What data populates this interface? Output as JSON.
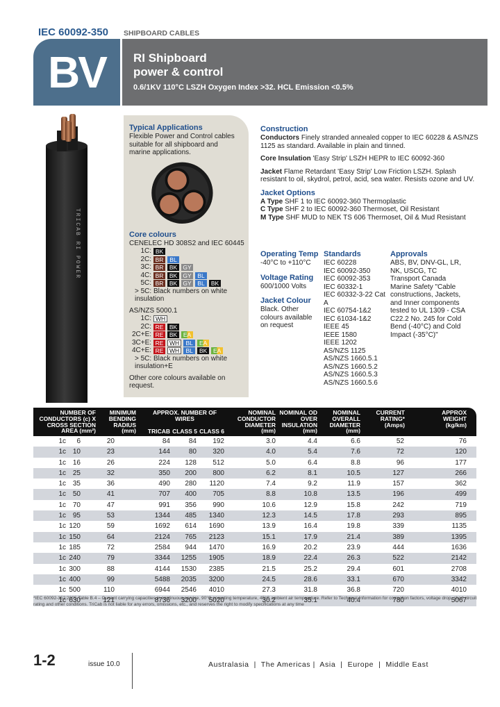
{
  "header": {
    "code": "IEC 60092-350",
    "category": "SHIPBOARD CABLES"
  },
  "banner": {
    "badge": "BV",
    "title_line1": "RI Shipboard",
    "title_line2": "power & control",
    "subtitle": "0.6/1KV  110°C LSZH Oxygen Index >32. HCL Emission <0.5%"
  },
  "cable_print": "TRICAB RI POWER",
  "typical": {
    "heading": "Typical  Applications",
    "text": "Flexible Power and Control cables suitable for all shipboard and marine applications."
  },
  "core_colours": {
    "heading": "Core colours",
    "cenelec_title": "CENELEC HD 308S2 and IEC 60445",
    "cenelec": [
      {
        "label": "1C:",
        "codes": [
          "BK"
        ]
      },
      {
        "label": "2C:",
        "codes": [
          "BR",
          "BL"
        ]
      },
      {
        "label": "3C:",
        "codes": [
          "BR",
          "BK",
          "GY"
        ]
      },
      {
        "label": "4C:",
        "codes": [
          "BR",
          "BK",
          "GY",
          "BL"
        ]
      },
      {
        "label": "5C:",
        "codes": [
          "BR",
          "BK",
          "GY",
          "BL",
          "BK"
        ]
      }
    ],
    "cenelec_note": "> 5C: Black numbers on white insulation",
    "asnzs_title": "AS/NZS 5000.1",
    "asnzs": [
      {
        "label": "1C:",
        "codes": [
          "WH"
        ]
      },
      {
        "label": "2C:",
        "codes": [
          "RE",
          "BK"
        ]
      },
      {
        "label": "2C+E:",
        "codes": [
          "RE",
          "BK",
          "EA"
        ]
      },
      {
        "label": "3C+E:",
        "codes": [
          "RE",
          "WH",
          "BL",
          "EA"
        ]
      },
      {
        "label": "4C+E:",
        "codes": [
          "RE",
          "WH",
          "BL",
          "BK",
          "EA"
        ]
      }
    ],
    "asnzs_note": "> 5C: Black numbers on white insulation+E",
    "other": "Other core colours available on request.",
    "colors": {
      "BK": "#111111",
      "BR": "#6b2e1f",
      "BL": "#3a78c9",
      "GY": "#8a8a8a",
      "WH": "#ffffff",
      "RE": "#c4161c",
      "EA": "#6bb33f"
    }
  },
  "construction": {
    "heading": "Construction",
    "conductors_label": "Conductors",
    "conductors": " Finely stranded annealed copper to IEC 60228 & AS/NZS 1125 as standard. Available in plain and tinned.",
    "core_label": "Core Insulation",
    "core": " 'Easy Strip' LSZH HEPR to IEC 60092-360",
    "jacket_label": "Jacket",
    "jacket": " Flame Retardant 'Easy Strip' Low Friction LSZH. Splash resistant to oil, skydrol, petrol, acid, sea water. Resists ozone and UV.",
    "options_heading": "Jacket Options",
    "options": [
      {
        "label": "A Type",
        "text": " SHF 1 to IEC 60092-360 Thermoplastic"
      },
      {
        "label": "C Type",
        "text": " SHF 2 to IEC 60092-360 Thermoset, Oil Resistant"
      },
      {
        "label": "M Type",
        "text": " SHF MUD to NEK TS 606 Thermoset, Oil & Mud Resistant"
      }
    ]
  },
  "operating": {
    "heading": "Operating Temp",
    "text": "-40°C to +110°C"
  },
  "voltage": {
    "heading": "Voltage Rating",
    "text": "600/1000 Volts"
  },
  "jacket_colour": {
    "heading": "Jacket Colour",
    "text": "Black. Other colours available on request"
  },
  "standards": {
    "heading": "Standards",
    "items": [
      "IEC 60228",
      "IEC 60092-350",
      "IEC 60092-353",
      "IEC 60332-1",
      "IEC 60332-3-22 Cat A",
      "IEC 60754-1&2",
      "IEC 61034-1&2",
      "IEEE 45",
      "IEEE 1580",
      "IEEE 1202",
      "AS/NZS 1125",
      "AS/NZS 1660.5.1",
      "AS/NZS 1660.5.2",
      "AS/NZS 1660.5.3",
      "AS/NZS 1660.5.6"
    ]
  },
  "approvals": {
    "heading": "Approvals",
    "text": "ABS, BV, DNV-GL, LR, NK, USCG, TC Transport Canada Marine Safety \"Cable constructions, Jackets, and Inner components tested to UL 1309 - CSA C22.2 No. 245 for Cold Bend (-40°C) and Cold Impact (-35°C)\""
  },
  "table": {
    "headers": {
      "conductors": "NUMBER OF CONDUCTORS (c) X CROSS SECTION AREA (mm²)",
      "bending": "MINIMUM BENDING RADIUS (mm)",
      "wires": "APPROX. NUMBER OF WIRES",
      "tricab": "TRICAB",
      "class5": "CLASS 5",
      "class6": "CLASS 6",
      "cond_dia": "NOMINAL CONDUCTOR DIAMETER (mm)",
      "od_ins": "NOMINAL OD OVER INSULATION (mm)",
      "overall": "NOMINAL OVERALL DIAMETER (mm)",
      "current": "CURRENT RATING* (Amps)",
      "weight": "APPROX WEIGHT (kg/km)"
    },
    "rows": [
      [
        "1c",
        "6",
        "20",
        "84",
        "84",
        "192",
        "3.0",
        "4.4",
        "6.6",
        "52",
        "76"
      ],
      [
        "1c",
        "10",
        "23",
        "144",
        "80",
        "320",
        "4.0",
        "5.4",
        "7.6",
        "72",
        "120"
      ],
      [
        "1c",
        "16",
        "26",
        "224",
        "128",
        "512",
        "5.0",
        "6.4",
        "8.8",
        "96",
        "177"
      ],
      [
        "1c",
        "25",
        "32",
        "350",
        "200",
        "800",
        "6.2",
        "8.1",
        "10.5",
        "127",
        "266"
      ],
      [
        "1c",
        "35",
        "36",
        "490",
        "280",
        "1120",
        "7.4",
        "9.2",
        "11.9",
        "157",
        "362"
      ],
      [
        "1c",
        "50",
        "41",
        "707",
        "400",
        "705",
        "8.8",
        "10.8",
        "13.5",
        "196",
        "499"
      ],
      [
        "1c",
        "70",
        "47",
        "991",
        "356",
        "990",
        "10.6",
        "12.9",
        "15.8",
        "242",
        "719"
      ],
      [
        "1c",
        "95",
        "53",
        "1344",
        "485",
        "1340",
        "12.3",
        "14.5",
        "17.8",
        "293",
        "895"
      ],
      [
        "1c",
        "120",
        "59",
        "1692",
        "614",
        "1690",
        "13.9",
        "16.4",
        "19.8",
        "339",
        "1135"
      ],
      [
        "1c",
        "150",
        "64",
        "2124",
        "765",
        "2123",
        "15.1",
        "17.9",
        "21.4",
        "389",
        "1395"
      ],
      [
        "1c",
        "185",
        "72",
        "2584",
        "944",
        "1470",
        "16.9",
        "20.2",
        "23.9",
        "444",
        "1636"
      ],
      [
        "1c",
        "240",
        "79",
        "3344",
        "1255",
        "1905",
        "18.9",
        "22.4",
        "26.3",
        "522",
        "2142"
      ],
      [
        "1c",
        "300",
        "88",
        "4144",
        "1530",
        "2385",
        "21.5",
        "25.2",
        "29.4",
        "601",
        "2708"
      ],
      [
        "1c",
        "400",
        "99",
        "5488",
        "2035",
        "3200",
        "24.5",
        "28.6",
        "33.1",
        "670",
        "3342"
      ],
      [
        "1c",
        "500",
        "110",
        "6944",
        "2546",
        "4010",
        "27.3",
        "31.8",
        "36.8",
        "720",
        "4010"
      ],
      [
        "1c",
        "630",
        "121",
        "8736",
        "3200",
        "5020",
        "30.2",
        "35.1",
        "40.4",
        "780",
        "5067"
      ]
    ]
  },
  "footnote": "*IEC 60092-352:2005 Table B.4 – Current carrying capacities in continuous service, 90°C operating temperature, 45°C ambient air temperature. Refer to Technical Information for correction factors, voltage drop, short circuit rating and other conditions. TriCab is not liable for any errors, omissions, etc., and reserves the right to modify specifications at any time",
  "footer": {
    "page": "1-2",
    "issue": "issue 10.0",
    "regions": "Australasia  |  The Americas |  Asia  |  Europe  |  Middle East"
  }
}
